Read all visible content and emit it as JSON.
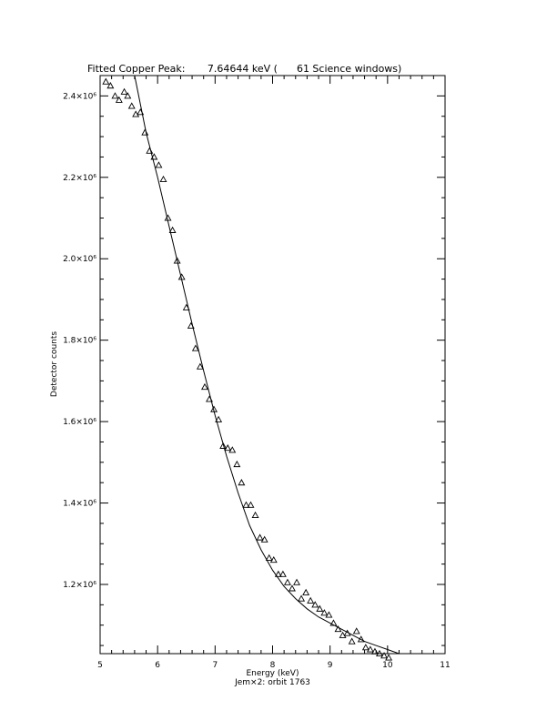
{
  "chart_data": {
    "type": "scatter",
    "title": "Fitted Copper Peak:       7.64644 keV (      61 Science windows)",
    "xlabel": "Energy (keV)",
    "ylabel": "Detector counts",
    "subtitle": "Jem×2: orbit 1763",
    "xlim": [
      5,
      11
    ],
    "ylim": [
      1030000,
      2450000
    ],
    "x_ticks": [
      5,
      6,
      7,
      8,
      9,
      10,
      11
    ],
    "y_ticks": [
      1200000,
      1400000,
      1600000,
      1800000,
      2000000,
      2200000,
      2400000
    ],
    "y_tick_labels": [
      "1.2×10⁶",
      "1.4×10⁶",
      "1.6×10⁶",
      "1.8×10⁶",
      "2.0×10⁶",
      "2.2×10⁶",
      "2.4×10⁶"
    ],
    "grid": false,
    "series": [
      {
        "marker": "triangle",
        "x": [
          5.1,
          5.18,
          5.26,
          5.33,
          5.42,
          5.48,
          5.55,
          5.62,
          5.7,
          5.78,
          5.86,
          5.94,
          6.02,
          6.1,
          6.18,
          6.26,
          6.34,
          6.42,
          6.5,
          6.58,
          6.66,
          6.74,
          6.82,
          6.9,
          6.98,
          7.06,
          7.14,
          7.22,
          7.3,
          7.38,
          7.46,
          7.54,
          7.62,
          7.7,
          7.78,
          7.86,
          7.94,
          8.02,
          8.1,
          8.18,
          8.26,
          8.34,
          8.42,
          8.5,
          8.58,
          8.66,
          8.74,
          8.82,
          8.9,
          8.98,
          9.06,
          9.14,
          9.22,
          9.3,
          9.38,
          9.46,
          9.54,
          9.62,
          9.7,
          9.78,
          9.86,
          9.94,
          10.02
        ],
        "y": [
          2435000,
          2425000,
          2400000,
          2390000,
          2410000,
          2400000,
          2375000,
          2355000,
          2360000,
          2310000,
          2265000,
          2250000,
          2230000,
          2195000,
          2100000,
          2070000,
          1995000,
          1955000,
          1880000,
          1835000,
          1780000,
          1735000,
          1685000,
          1655000,
          1630000,
          1605000,
          1540000,
          1535000,
          1530000,
          1495000,
          1450000,
          1395000,
          1395000,
          1370000,
          1315000,
          1310000,
          1265000,
          1260000,
          1225000,
          1225000,
          1205000,
          1190000,
          1205000,
          1165000,
          1180000,
          1160000,
          1150000,
          1140000,
          1130000,
          1125000,
          1105000,
          1090000,
          1075000,
          1080000,
          1060000,
          1085000,
          1065000,
          1045000,
          1040000,
          1035000,
          1030000,
          1025000,
          1020000
        ]
      },
      {
        "style": "line",
        "x": [
          5.6,
          5.8,
          6.0,
          6.2,
          6.4,
          6.6,
          6.8,
          7.0,
          7.2,
          7.4,
          7.6,
          7.8,
          8.0,
          8.2,
          8.4,
          8.6,
          8.8,
          9.0,
          9.2,
          9.4,
          9.6,
          9.8,
          10.0,
          10.2
        ],
        "y": [
          2450000,
          2310000,
          2200000,
          2080000,
          1960000,
          1840000,
          1725000,
          1615000,
          1515000,
          1425000,
          1345000,
          1285000,
          1235000,
          1195000,
          1165000,
          1140000,
          1120000,
          1105000,
          1090000,
          1075000,
          1060000,
          1050000,
          1040000,
          1030000
        ]
      }
    ]
  }
}
